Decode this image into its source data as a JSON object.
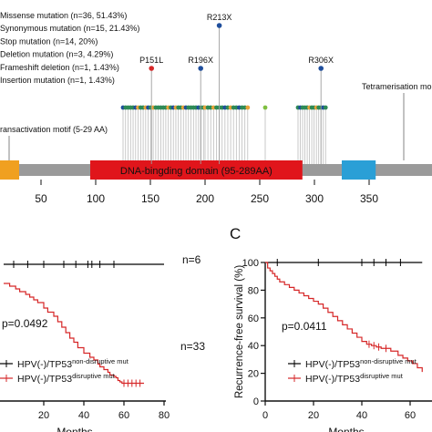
{
  "panel_c_letter": "C",
  "chart_data": [
    {
      "type": "lollipop",
      "legend": [
        {
          "label": "Missense mutation (n=36, 51.43%)",
          "color": "#2e8b57"
        },
        {
          "label": "Synonymous mutation (n=15, 21.43%)",
          "color": "#e8a33a"
        },
        {
          "label": "Stop mutation (n=14, 20%)",
          "color": "#1f4e9c"
        },
        {
          "label": "Deletion mutation (n=3, 4.29%)",
          "color": "#d62728"
        },
        {
          "label": "Frameshift deletion (n=1, 1.43%)",
          "color": "#7fbf3f"
        },
        {
          "label": "Insertion mutation (n=1, 1.43%)",
          "color": "#8e44ad"
        }
      ],
      "domains": [
        {
          "label": "ransactivation motif (5-29 AA)",
          "start": 5,
          "end": 29,
          "color": "#f0a020"
        },
        {
          "label": "DNA-bingding domain (95-289AA)",
          "start": 95,
          "end": 289,
          "color": "#e0151b"
        },
        {
          "label": "Tetramerisation mo",
          "start": 325,
          "end": 356,
          "color": "#2a9fd6"
        }
      ],
      "labeled_mutations": [
        {
          "label": "P151L",
          "position": 151,
          "color": "#d62728",
          "level": 1
        },
        {
          "label": "R196X",
          "position": 196,
          "color": "#1f4e9c",
          "level": 1
        },
        {
          "label": "R213X",
          "position": 213,
          "color": "#1f4e9c",
          "level": 2
        },
        {
          "label": "R306X",
          "position": 306,
          "color": "#1f4e9c",
          "level": 1
        }
      ],
      "xticks": [
        50,
        100,
        150,
        200,
        250,
        300,
        350
      ],
      "xlim": [
        0,
        370
      ]
    },
    {
      "type": "line",
      "subtype": "kaplan-meier",
      "xlabel": "Months",
      "xticks": [
        20,
        40,
        60,
        80
      ],
      "xlim": [
        0,
        80
      ],
      "ylim": [
        0,
        100
      ],
      "p_value": "p=0.0492",
      "n_labels": [
        "n=6",
        "n=33"
      ],
      "legend": [
        {
          "prefix": "HPV(-)/TP53",
          "sup": "non-disruptive mut",
          "color": "#000000"
        },
        {
          "prefix": "HPV(-)/TP53",
          "sup": "disruptive mut",
          "color": "#d62728"
        }
      ],
      "series": [
        {
          "color": "#000000",
          "points": [
            [
              0,
              100
            ],
            [
              80,
              100
            ]
          ],
          "censor": [
            5,
            12,
            20,
            30,
            36,
            42,
            44,
            48,
            55
          ]
        },
        {
          "color": "#d62728",
          "points": [
            [
              0,
              86
            ],
            [
              3,
              84
            ],
            [
              6,
              82
            ],
            [
              8,
              80
            ],
            [
              11,
              78
            ],
            [
              13,
              76
            ],
            [
              15,
              74
            ],
            [
              17,
              72
            ],
            [
              20,
              68
            ],
            [
              22,
              65
            ],
            [
              25,
              62
            ],
            [
              27,
              58
            ],
            [
              29,
              54
            ],
            [
              31,
              50
            ],
            [
              33,
              46
            ],
            [
              35,
              43
            ],
            [
              37,
              39
            ],
            [
              40,
              35
            ],
            [
              43,
              32
            ],
            [
              45,
              30
            ],
            [
              47,
              27
            ],
            [
              48,
              25
            ],
            [
              50,
              23
            ],
            [
              52,
              21
            ],
            [
              53,
              19
            ],
            [
              55,
              18
            ],
            [
              56,
              17
            ],
            [
              57,
              15
            ],
            [
              58,
              14
            ],
            [
              59,
              13
            ],
            [
              70,
              13
            ]
          ],
          "censor": [
            60,
            62,
            64,
            66,
            68
          ]
        }
      ]
    },
    {
      "type": "line",
      "subtype": "kaplan-meier",
      "xlabel": "Months",
      "ylabel": "Recurrence-free survival (%)",
      "yticks": [
        0,
        20,
        40,
        60,
        80,
        100
      ],
      "xticks": [
        0,
        20,
        40,
        60
      ],
      "xlim": [
        0,
        65
      ],
      "ylim": [
        0,
        100
      ],
      "p_value": "p=0.0411",
      "legend": [
        {
          "prefix": "HPV(-)/TP53",
          "sup": "non-disruptive mut",
          "color": "#000000"
        },
        {
          "prefix": "HPV(-)/TP53",
          "sup": "disruptive mut",
          "color": "#d62728"
        }
      ],
      "series": [
        {
          "color": "#000000",
          "points": [
            [
              0,
              100
            ],
            [
              65,
              100
            ]
          ],
          "censor": [
            5,
            22,
            40,
            45,
            50,
            56
          ]
        },
        {
          "color": "#d62728",
          "points": [
            [
              0,
              100
            ],
            [
              1,
              96
            ],
            [
              2,
              94
            ],
            [
              3,
              92
            ],
            [
              4,
              90
            ],
            [
              5,
              88
            ],
            [
              6,
              86
            ],
            [
              8,
              84
            ],
            [
              10,
              82
            ],
            [
              12,
              80
            ],
            [
              14,
              78
            ],
            [
              16,
              76
            ],
            [
              18,
              74
            ],
            [
              20,
              72
            ],
            [
              22,
              70
            ],
            [
              24,
              67
            ],
            [
              26,
              64
            ],
            [
              28,
              61
            ],
            [
              30,
              58
            ],
            [
              32,
              55
            ],
            [
              34,
              52
            ],
            [
              36,
              49
            ],
            [
              38,
              46
            ],
            [
              40,
              43
            ],
            [
              42,
              41
            ],
            [
              44,
              40
            ],
            [
              46,
              39
            ],
            [
              48,
              38
            ],
            [
              52,
              36
            ],
            [
              55,
              33
            ],
            [
              57,
              31
            ],
            [
              59,
              29
            ],
            [
              61,
              27
            ],
            [
              63,
              24
            ],
            [
              65,
              21
            ]
          ],
          "censor": [
            43,
            45,
            47,
            50
          ]
        }
      ]
    }
  ]
}
